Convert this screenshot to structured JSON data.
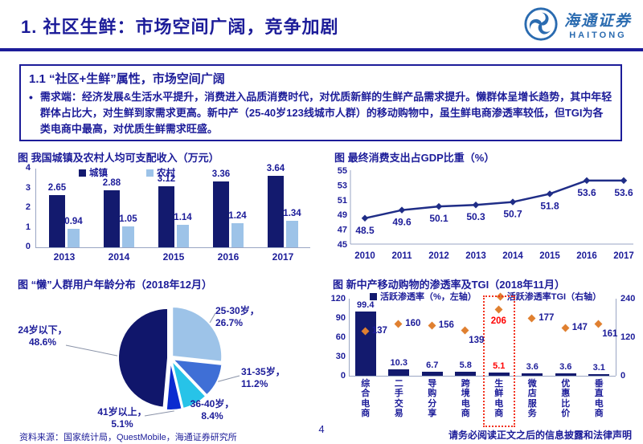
{
  "slide": {
    "title": "1. 社区生鲜：市场空间广阔，竞争加剧"
  },
  "logo": {
    "cn": "海通证券",
    "en": "HAITONG"
  },
  "info_box": {
    "heading": "1.1 “社区+生鲜”属性，市场空间广阔",
    "bullet": "•",
    "bullet_text": "需求端：经济发展&生活水平提升，消费进入品质消费时代，对优质新鲜的生鲜产品需求提升。懒群体呈增长趋势，其中年轻群体占比大，对生鲜到家需求更高。新中产（25-40岁123线城市人群）的移动购物中，虽生鲜电商渗透率较低，但TGI为各类电商中最高，对优质生鲜需求旺盛。"
  },
  "footer": {
    "source": "资料来源：国家统计局，QuestMobile，海通证券研究所",
    "page": "4",
    "disclaimer": "请务必阅读正文之后的信息披露和法律声明"
  },
  "colors": {
    "navy_text": "#1c1c99",
    "bar_dark": "#131a6e",
    "light_blue": "#9dc3e8",
    "line": "#1f2d87",
    "orange": "#e08030",
    "red": "#ff0000",
    "axis": "#9aa6c4"
  },
  "chart_data": [
    {
      "id": "income",
      "type": "bar",
      "title": "图  我国城镇及农村人均可支配收入（万元）",
      "categories": [
        "2013",
        "2014",
        "2015",
        "2016",
        "2017"
      ],
      "series": [
        {
          "name": "城镇",
          "color": "#131a6e",
          "values": [
            2.65,
            2.88,
            3.12,
            3.36,
            3.64
          ]
        },
        {
          "name": "农村",
          "color": "#9dc3e8",
          "values": [
            0.94,
            1.05,
            1.14,
            1.24,
            1.34
          ]
        }
      ],
      "ylim": [
        0,
        4
      ],
      "yticks": [
        0,
        1,
        2,
        3,
        4
      ],
      "legend_position": "top",
      "grid": false
    },
    {
      "id": "gdp",
      "type": "line",
      "title": "图  最终消费支出占GDP比重（%）",
      "x": [
        "2010",
        "2011",
        "2012",
        "2013",
        "2014",
        "2015",
        "2016",
        "2017"
      ],
      "values": [
        48.5,
        49.6,
        50.1,
        50.3,
        50.7,
        51.8,
        53.6,
        53.6
      ],
      "ylim": [
        45,
        55
      ],
      "yticks": [
        45,
        47,
        49,
        51,
        53,
        55
      ],
      "color": "#1f2d87",
      "grid": false
    },
    {
      "id": "age",
      "type": "pie",
      "title": "图  “懒”人群用户年龄分布（2018年12月）",
      "slices": [
        {
          "label": "25-30岁",
          "value": 26.7,
          "color": "#9dc3e8"
        },
        {
          "label": "31-35岁",
          "value": 11.2,
          "color": "#3f6fd6"
        },
        {
          "label": "36-40岁",
          "value": 8.4,
          "color": "#27c3e8"
        },
        {
          "label": "41岁以上",
          "value": 5.1,
          "color": "#0b2bd0"
        },
        {
          "label": "24岁以下",
          "value": 48.6,
          "color": "#10166b"
        }
      ]
    },
    {
      "id": "tgi",
      "type": "bar-scatter",
      "title": "图  新中产移动购物的渗透率及TGI（2018年11月）",
      "legend": [
        "活跃渗透率（%，左轴）",
        "活跃渗透率TGI（右轴）"
      ],
      "categories": [
        "综合电商",
        "二手交易",
        "导购分享",
        "跨境电商",
        "生鲜电商",
        "微店服务",
        "优惠比价",
        "垂直电商"
      ],
      "bars": [
        99.4,
        10.3,
        6.7,
        5.8,
        5.1,
        3.6,
        3.6,
        3.1
      ],
      "points": [
        137,
        160,
        156,
        139,
        206,
        177,
        147,
        161
      ],
      "highlight_index": 4,
      "highlight_category": "生鲜电商",
      "left_ylim": [
        0,
        120
      ],
      "left_yticks": [
        120,
        90,
        60,
        30,
        0
      ],
      "right_ylim": [
        0,
        240
      ],
      "right_yticks": [
        240,
        120,
        0
      ],
      "bar_color": "#131a6e",
      "point_color": "#e08030",
      "highlight_color": "#ff0000",
      "grid": false
    }
  ]
}
